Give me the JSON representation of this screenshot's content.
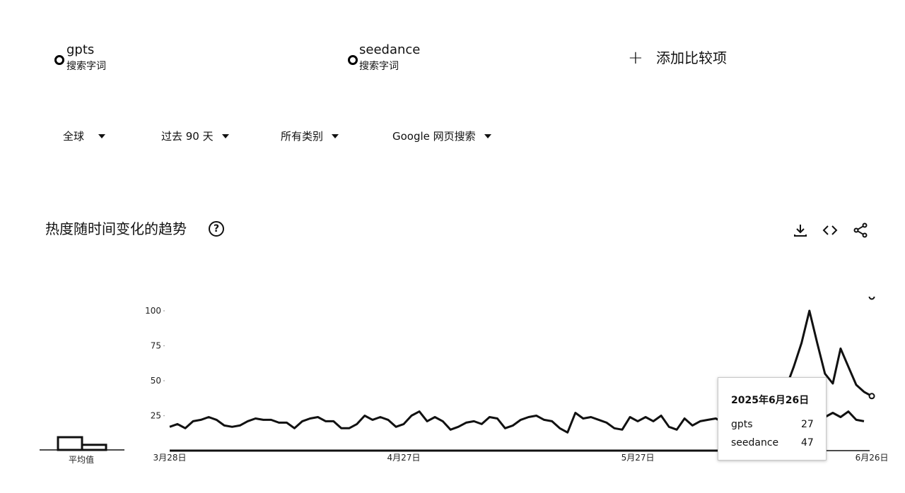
{
  "terms": [
    {
      "name": "gpts",
      "sub": "搜索字词"
    },
    {
      "name": "seedance",
      "sub": "搜索字词"
    }
  ],
  "add_compare": {
    "icon": "plus-icon",
    "label": "添加比较项"
  },
  "filters": [
    {
      "label": "全球",
      "icon": "caret-down-icon"
    },
    {
      "label": "过去 90 天",
      "icon": "caret-down-icon"
    },
    {
      "label": "所有类别",
      "icon": "caret-down-icon"
    },
    {
      "label": "Google 网页搜索",
      "icon": "caret-down-icon"
    }
  ],
  "section": {
    "title": "热度随时间变化的趋势",
    "help_icon": "help-circle-icon",
    "help_glyph": "?"
  },
  "toolbar": {
    "download_icon": "download-icon",
    "embed_icon": "code-embed-icon",
    "share_icon": "share-icon"
  },
  "average_label": "平均值",
  "tooltip": {
    "date": "2025年6月26日",
    "rows": [
      {
        "term": "gpts",
        "value": "27"
      },
      {
        "term": "seedance",
        "value": "47"
      }
    ]
  },
  "chart_data": {
    "type": "line",
    "ylim": [
      0,
      100
    ],
    "yticks": [
      "100",
      "75",
      "50",
      "25"
    ],
    "xticks": [
      "3月28日",
      "4月27日",
      "5月27日",
      "6月26日"
    ],
    "x_range": [
      "2025-03-28",
      "2025-06-29"
    ],
    "averages": {
      "gpts": 20,
      "seedance": 8
    },
    "series": [
      {
        "name": "gpts",
        "values": [
          17,
          19,
          16,
          21,
          22,
          24,
          22,
          18,
          17,
          18,
          21,
          23,
          22,
          22,
          20,
          20,
          16,
          21,
          23,
          24,
          21,
          21,
          16,
          16,
          19,
          25,
          22,
          24,
          22,
          17,
          19,
          25,
          28,
          21,
          24,
          21,
          15,
          17,
          20,
          21,
          19,
          24,
          23,
          16,
          18,
          22,
          24,
          25,
          22,
          21,
          16,
          13,
          27,
          23,
          24,
          22,
          20,
          16,
          15,
          24,
          21,
          24,
          21,
          25,
          17,
          15,
          23,
          18,
          21,
          22,
          23,
          20,
          18,
          23,
          25,
          22,
          28,
          17,
          19,
          20,
          22,
          23,
          18,
          22,
          24,
          27,
          24,
          28,
          22,
          21
        ]
      },
      {
        "name": "seedance",
        "values": [
          0,
          0,
          0,
          0,
          0,
          0,
          0,
          0,
          0,
          0,
          0,
          0,
          0,
          0,
          0,
          0,
          0,
          0,
          0,
          0,
          0,
          0,
          0,
          0,
          0,
          0,
          0,
          0,
          0,
          0,
          0,
          0,
          0,
          0,
          0,
          0,
          0,
          0,
          0,
          0,
          0,
          0,
          0,
          0,
          0,
          0,
          0,
          0,
          0,
          0,
          0,
          0,
          0,
          0,
          0,
          0,
          0,
          0,
          0,
          0,
          0,
          0,
          0,
          0,
          0,
          0,
          0,
          0,
          0,
          0,
          0,
          0,
          0,
          0,
          0,
          1,
          3,
          10,
          25,
          45,
          60,
          77,
          100,
          77,
          55,
          48,
          73,
          60,
          47,
          42,
          39
        ]
      }
    ]
  }
}
